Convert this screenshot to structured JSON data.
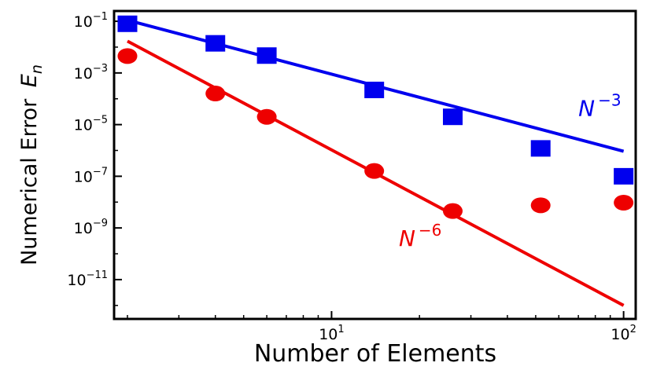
{
  "chart_data": {
    "type": "scatter",
    "title": "",
    "xlabel": "Number of Elements",
    "ylabel": "Numerical Error",
    "ylabel_symbol": "E",
    "ylabel_subscript": "n",
    "xscale": "log",
    "yscale": "log",
    "xlim": [
      1.8,
      110
    ],
    "ylim": [
      3e-13,
      0.25
    ],
    "grid": false,
    "x_ticks": [
      {
        "value": 10,
        "base": "10",
        "exp": "1"
      },
      {
        "value": 100,
        "base": "10",
        "exp": "2"
      }
    ],
    "y_ticks": [
      {
        "value": 0.1,
        "base": "10",
        "exp": "−1"
      },
      {
        "value": 0.001,
        "base": "10",
        "exp": "−3"
      },
      {
        "value": 1e-05,
        "base": "10",
        "exp": "−5"
      },
      {
        "value": 1e-07,
        "base": "10",
        "exp": "−7"
      },
      {
        "value": 1e-09,
        "base": "10",
        "exp": "−9"
      },
      {
        "value": 1e-11,
        "base": "10",
        "exp": "−11"
      }
    ],
    "series": [
      {
        "marker": "square",
        "color": "#0000ee",
        "x": [
          2,
          4,
          6,
          14,
          26,
          52,
          100
        ],
        "y": [
          0.08,
          0.014,
          0.0047,
          0.00022,
          2e-05,
          1.2e-06,
          1e-07
        ]
      },
      {
        "marker": "circle",
        "color": "#ee0000",
        "x": [
          2,
          4,
          6,
          14,
          26,
          52,
          100
        ],
        "y": [
          0.0045,
          0.00016,
          2e-05,
          1.6e-07,
          4.5e-09,
          7.5e-09,
          9.5e-09
        ]
      }
    ],
    "reference_lines": [
      {
        "label_base": "N",
        "label_exp": "−3",
        "color": "#0000ee",
        "x": [
          2,
          100
        ],
        "y": [
          0.11,
          9.3e-07
        ]
      },
      {
        "label_base": "N",
        "label_exp": "−6",
        "color": "#ee0000",
        "x": [
          2,
          100
        ],
        "y": [
          0.017,
          1e-12
        ]
      }
    ]
  }
}
